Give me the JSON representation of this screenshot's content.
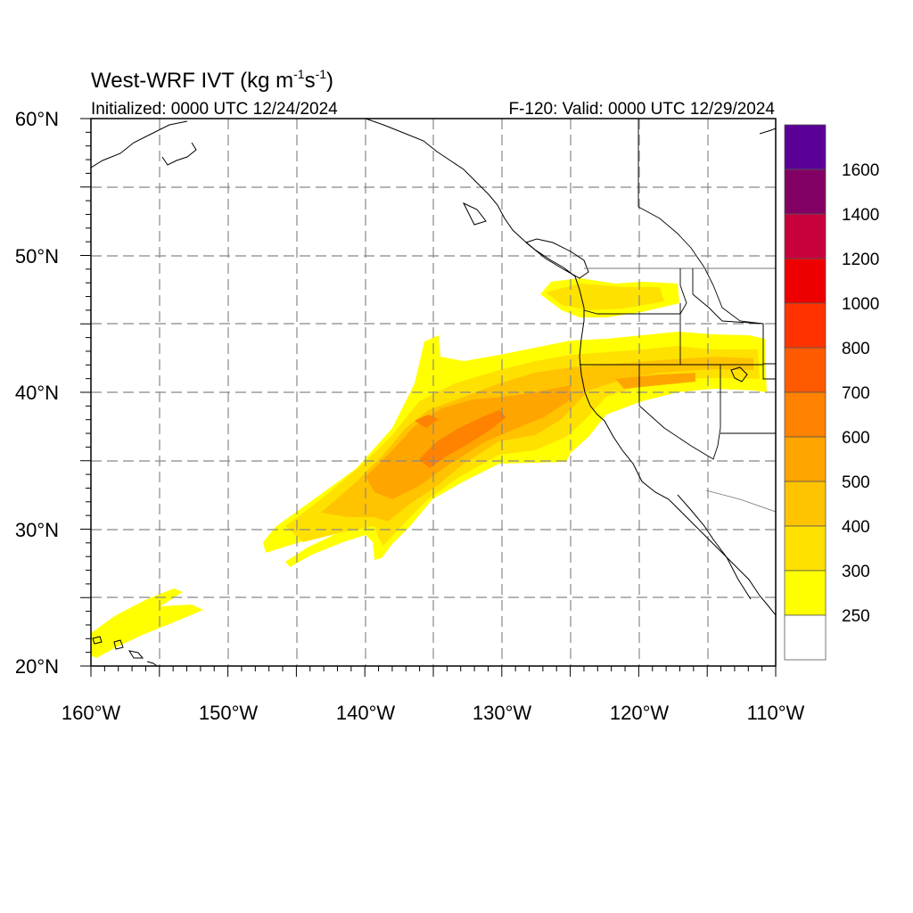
{
  "header": {
    "title_prefix": "West-WRF IVT (kg m",
    "title_sup1": "-1",
    "title_mid": "s",
    "title_sup2": "-1",
    "title_suffix": ")",
    "initialized": "Initialized: 0000 UTC 12/24/2024",
    "valid": "F-120: Valid: 0000 UTC 12/29/2024"
  },
  "axes": {
    "lon_labels": [
      "160°W",
      "150°W",
      "140°W",
      "130°W",
      "120°W",
      "110°W"
    ],
    "lat_labels": [
      "20°N",
      "30°N",
      "40°N",
      "50°N",
      "60°N"
    ],
    "lon_range": [
      -160,
      -110
    ],
    "lat_range": [
      20,
      60
    ],
    "grid_lons": [
      -155,
      -150,
      -145,
      -140,
      -135,
      -130,
      -125,
      -120,
      -115
    ],
    "grid_lats": [
      25,
      30,
      35,
      40,
      45,
      50,
      55
    ],
    "grid": true
  },
  "colorbar": {
    "labels": [
      "250",
      "300",
      "400",
      "500",
      "600",
      "700",
      "800",
      "1000",
      "1200",
      "1400",
      "1600"
    ],
    "colors": [
      "#ffffff",
      "#ffff00",
      "#ffe100",
      "#ffc300",
      "#ffa500",
      "#ff8200",
      "#ff5a00",
      "#ff3200",
      "#ee0000",
      "#c8003c",
      "#820064",
      "#5a0096"
    ]
  },
  "legend_placement": "right"
}
